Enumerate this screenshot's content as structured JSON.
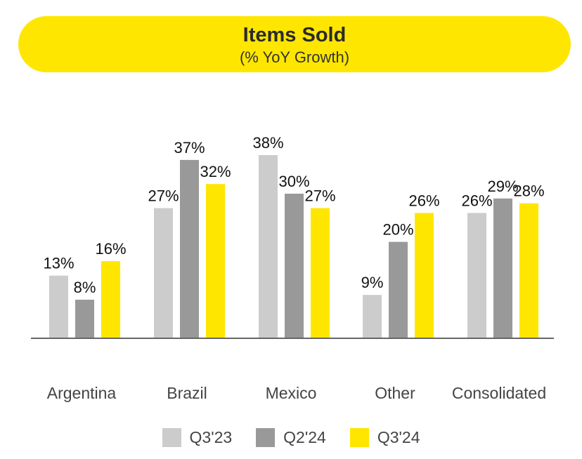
{
  "chart_data": {
    "type": "bar",
    "title": "Items Sold",
    "subtitle": "(% YoY Growth)",
    "categories": [
      "Argentina",
      "Brazil",
      "Mexico",
      "Other",
      "Consolidated"
    ],
    "series": [
      {
        "name": "Q3'23",
        "color": "#CCCCCC",
        "values": [
          13,
          27,
          38,
          9,
          26
        ],
        "labels": [
          "13%",
          "27%",
          "38%",
          "9%",
          "26%"
        ]
      },
      {
        "name": "Q2'24",
        "color": "#999999",
        "values": [
          8,
          37,
          30,
          20,
          29
        ],
        "labels": [
          "8%",
          "37%",
          "30%",
          "20%",
          "29%"
        ]
      },
      {
        "name": "Q3'24",
        "color": "#FFE600",
        "values": [
          16,
          32,
          27,
          26,
          28
        ],
        "labels": [
          "16%",
          "32%",
          "27%",
          "26%",
          "28%"
        ]
      }
    ],
    "ylim": [
      0,
      38
    ],
    "unit": "%",
    "grid": false,
    "legend_position": "bottom"
  }
}
